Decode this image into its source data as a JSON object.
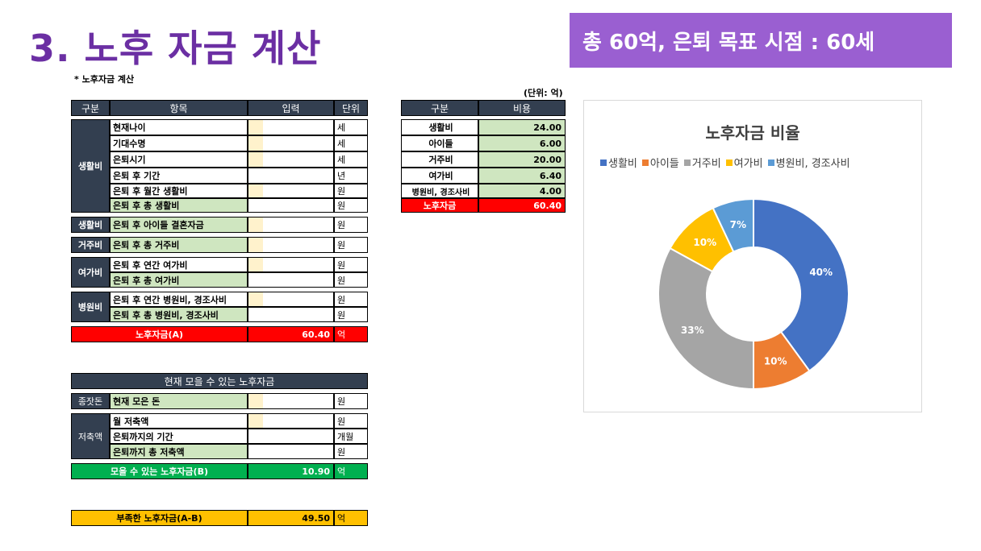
{
  "title": "3. 노후 자금 계산",
  "banner": "총 60억, 은퇴 목표 시점 : 60세",
  "subtitle": "* 노후자금 계산",
  "unit_note": "(단위: 억)",
  "main_table": {
    "headers": [
      "구분",
      "항목",
      "입력",
      "단위"
    ],
    "groups": {
      "living": "생활비",
      "children": "생활비",
      "housing": "거주비",
      "leisure": "여가비",
      "medical": "병원비"
    },
    "rows": [
      {
        "label": "현재나이",
        "unit": "세"
      },
      {
        "label": "기대수명",
        "unit": "세"
      },
      {
        "label": "은퇴시기",
        "unit": "세"
      },
      {
        "label": "은퇴 후 기간",
        "unit": "년"
      },
      {
        "label": "은퇴 후 월간 생활비",
        "unit": "원"
      },
      {
        "label": "은퇴 후 총 생활비",
        "unit": "원"
      },
      {
        "label": "은퇴 후 아이들 결혼자금",
        "unit": "원"
      },
      {
        "label": "은퇴 후 총 거주비",
        "unit": "원"
      },
      {
        "label": "은퇴 후 연간 여가비",
        "unit": "원"
      },
      {
        "label": "은퇴 후 총 여가비",
        "unit": "원"
      },
      {
        "label": "은퇴 후 연간 병원비, 경조사비",
        "unit": "원"
      },
      {
        "label": "은퇴 후 총 병원비, 경조사비",
        "unit": "원"
      }
    ],
    "total_label": "노후자금(A)",
    "total_value": "60.40",
    "total_unit": "억"
  },
  "saving_table": {
    "header": "현재 모을 수 있는 노후자금",
    "group1": "종잣돈",
    "group2": "저축액",
    "rows": [
      {
        "label": "현재 모은 돈",
        "unit": "원"
      },
      {
        "label": "월 저축액",
        "unit": "원"
      },
      {
        "label": "은퇴까지의 기간",
        "unit": "개월"
      },
      {
        "label": "은퇴까지 총 저축액",
        "unit": "원"
      }
    ],
    "total_label": "모을 수 있는 노후자금(B)",
    "total_value": "10.90",
    "total_unit": "억"
  },
  "shortfall": {
    "label": "부족한 노후자금(A-B)",
    "value": "49.50",
    "unit": "억"
  },
  "summary_table": {
    "headers": [
      "구분",
      "비용"
    ],
    "rows": [
      {
        "label": "생활비",
        "value": "24.00"
      },
      {
        "label": "아이들",
        "value": "6.00"
      },
      {
        "label": "거주비",
        "value": "20.00"
      },
      {
        "label": "여가비",
        "value": "6.40"
      },
      {
        "label": "병원비, 경조사비",
        "value": "4.00"
      }
    ],
    "total_label": "노후자금",
    "total_value": "60.40"
  },
  "chart_data": {
    "type": "pie",
    "title": "노후자금 비율",
    "categories": [
      "생활비",
      "아이들",
      "거주비",
      "여가비",
      "병원비, 경조사비"
    ],
    "values": [
      40,
      10,
      33,
      10,
      7
    ],
    "labels": [
      "40%",
      "10%",
      "33%",
      "10%",
      "7%"
    ],
    "colors": [
      "#4472c4",
      "#ed7d31",
      "#a5a5a5",
      "#ffc000",
      "#5b9bd5"
    ],
    "legend": "top",
    "donut": true
  }
}
